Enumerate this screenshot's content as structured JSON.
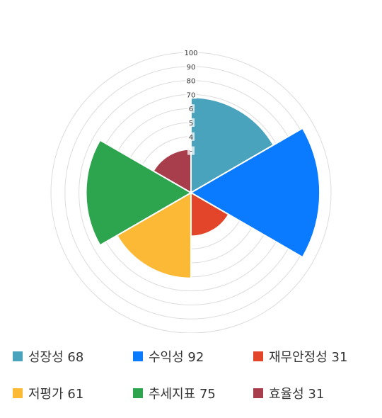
{
  "chart_data": {
    "type": "polar-area",
    "rmax": 100,
    "ticks": [
      "100",
      "90",
      "80",
      "70",
      "6",
      "5",
      "4",
      "-"
    ],
    "grid": true,
    "legend_position": "bottom",
    "categories": [
      "성장성",
      "수익성",
      "재무안정성",
      "저평가",
      "추세지표",
      "효율성"
    ],
    "values": [
      68,
      92,
      31,
      61,
      75,
      31
    ],
    "colors": [
      "#4aa3bd",
      "#0a7aff",
      "#e2452a",
      "#fbb935",
      "#2da44e",
      "#a83d4b"
    ]
  },
  "legend": [
    {
      "label": "성장성 68",
      "color": "#4aa3bd"
    },
    {
      "label": "수익성 92",
      "color": "#0a7aff"
    },
    {
      "label": "재무안정성 31",
      "color": "#e2452a"
    },
    {
      "label": "저평가 61",
      "color": "#fbb935"
    },
    {
      "label": "추세지표 75",
      "color": "#2da44e"
    },
    {
      "label": "효율성 31",
      "color": "#a83d4b"
    }
  ]
}
